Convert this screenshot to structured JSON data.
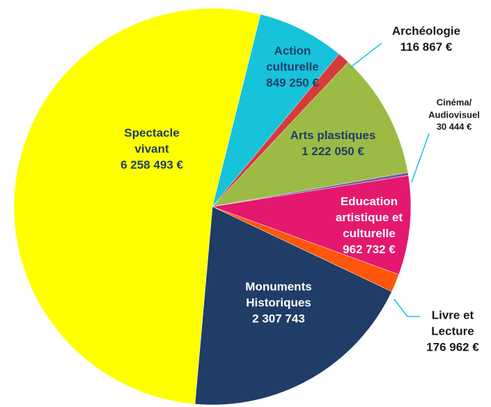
{
  "chart_data": {
    "type": "pie",
    "categories": [
      "Action culturelle",
      "Archéologie",
      "Arts plastiques",
      "Cinéma/ Audiovisuel",
      "Education artistique et culturelle",
      "Livre et Lecture",
      "Monuments Historiques",
      "Spectacle vivant"
    ],
    "values": [
      849250,
      116867,
      1222050,
      30444,
      962732,
      176962,
      2307743,
      6258493
    ],
    "value_labels": [
      "849 250 €",
      "116 867 €",
      "1 222 050 €",
      "30 444 €",
      "962 732 €",
      "176 962 €",
      "2 307 743",
      "6 258 493 €"
    ],
    "colors": [
      "#17c3db",
      "#d63b3b",
      "#9bbb45",
      "#7b5aa3",
      "#e3186e",
      "#ff560c",
      "#1f3d66",
      "#ffff00"
    ]
  }
}
